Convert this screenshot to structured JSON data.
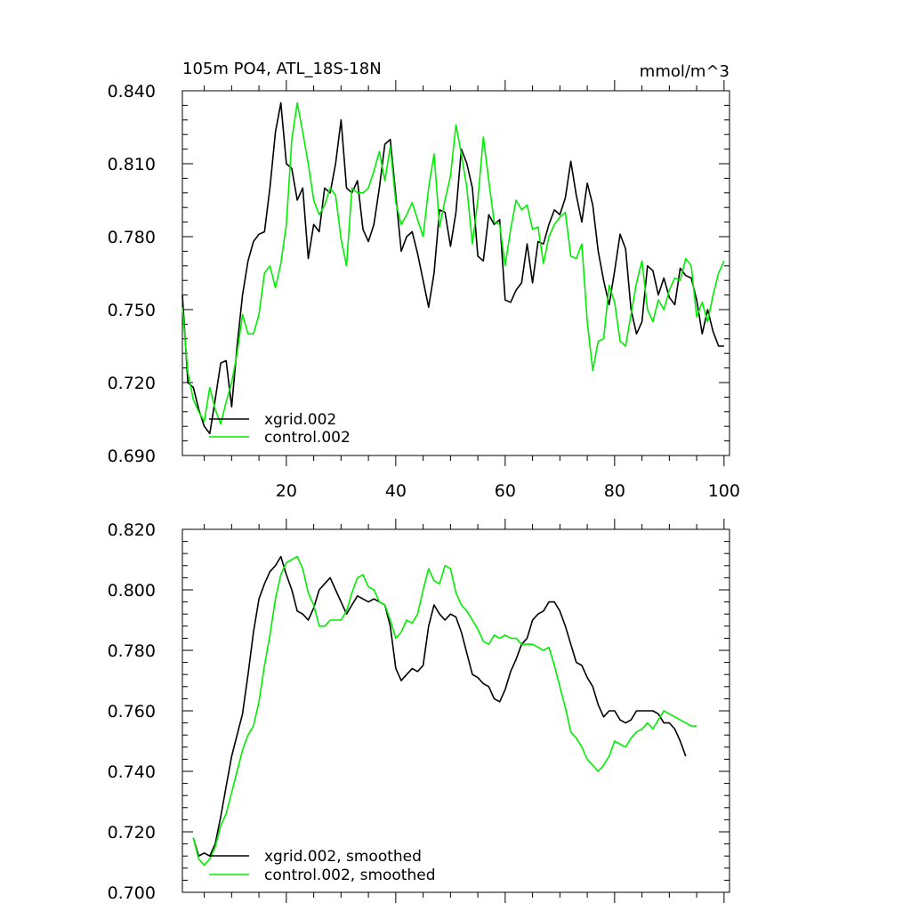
{
  "chart_data": [
    {
      "type": "line",
      "title_left": "105m PO4, ATL_18S-18N",
      "title_right": "mmol/m^3",
      "xlim": [
        1,
        101
      ],
      "ylim": [
        0.69,
        0.84
      ],
      "yticks": [
        0.69,
        0.72,
        0.75,
        0.78,
        0.81,
        0.84
      ],
      "ytick_labels": [
        "0.690",
        "0.720",
        "0.750",
        "0.780",
        "0.810",
        "0.840"
      ],
      "xticks": [
        20,
        40,
        60,
        80,
        100
      ],
      "xtick_labels": [
        "20",
        "40",
        "60",
        "80",
        "100"
      ],
      "show_xtick_labels": true,
      "x_start": 1,
      "series": [
        {
          "name": "xgrid.002",
          "color": "#000000",
          "values": [
            0.756,
            0.72,
            0.718,
            0.709,
            0.702,
            0.699,
            0.713,
            0.728,
            0.729,
            0.71,
            0.735,
            0.756,
            0.77,
            0.778,
            0.781,
            0.782,
            0.8,
            0.823,
            0.835,
            0.81,
            0.808,
            0.795,
            0.8,
            0.771,
            0.785,
            0.782,
            0.8,
            0.798,
            0.81,
            0.828,
            0.8,
            0.798,
            0.803,
            0.783,
            0.778,
            0.785,
            0.8,
            0.818,
            0.82,
            0.797,
            0.774,
            0.78,
            0.782,
            0.773,
            0.762,
            0.751,
            0.765,
            0.791,
            0.79,
            0.776,
            0.79,
            0.816,
            0.81,
            0.8,
            0.772,
            0.77,
            0.789,
            0.785,
            0.787,
            0.754,
            0.753,
            0.758,
            0.761,
            0.777,
            0.761,
            0.778,
            0.777,
            0.785,
            0.791,
            0.789,
            0.796,
            0.811,
            0.797,
            0.786,
            0.802,
            0.793,
            0.774,
            0.762,
            0.752,
            0.766,
            0.781,
            0.775,
            0.75,
            0.74,
            0.745,
            0.768,
            0.766,
            0.756,
            0.763,
            0.755,
            0.752,
            0.767,
            0.764,
            0.763,
            0.754,
            0.74,
            0.75,
            0.741,
            0.735,
            0.735
          ]
        },
        {
          "name": "control.002",
          "color": "#00ee00",
          "values": [
            0.751,
            0.724,
            0.713,
            0.708,
            0.704,
            0.718,
            0.709,
            0.703,
            0.712,
            0.72,
            0.732,
            0.748,
            0.74,
            0.74,
            0.748,
            0.765,
            0.768,
            0.759,
            0.769,
            0.785,
            0.82,
            0.835,
            0.823,
            0.81,
            0.795,
            0.789,
            0.793,
            0.8,
            0.797,
            0.779,
            0.768,
            0.8,
            0.798,
            0.798,
            0.8,
            0.807,
            0.815,
            0.803,
            0.817,
            0.794,
            0.785,
            0.789,
            0.794,
            0.787,
            0.78,
            0.8,
            0.814,
            0.784,
            0.795,
            0.805,
            0.826,
            0.814,
            0.8,
            0.777,
            0.795,
            0.821,
            0.803,
            0.786,
            0.785,
            0.768,
            0.783,
            0.795,
            0.791,
            0.793,
            0.783,
            0.784,
            0.769,
            0.78,
            0.785,
            0.788,
            0.79,
            0.772,
            0.771,
            0.777,
            0.745,
            0.725,
            0.737,
            0.738,
            0.76,
            0.753,
            0.737,
            0.735,
            0.748,
            0.761,
            0.77,
            0.75,
            0.745,
            0.754,
            0.75,
            0.758,
            0.763,
            0.762,
            0.771,
            0.768,
            0.747,
            0.753,
            0.745,
            0.756,
            0.765,
            0.77
          ]
        }
      ],
      "legend": {
        "position": "bottom-left",
        "entries": [
          "xgrid.002",
          "control.002"
        ]
      }
    },
    {
      "type": "line",
      "xlim": [
        1,
        101
      ],
      "ylim": [
        0.7,
        0.82
      ],
      "yticks": [
        0.7,
        0.72,
        0.74,
        0.76,
        0.78,
        0.8,
        0.82
      ],
      "ytick_labels": [
        "0.700",
        "0.720",
        "0.740",
        "0.760",
        "0.780",
        "0.800",
        "0.820"
      ],
      "xticks": [
        20,
        40,
        60,
        80,
        100
      ],
      "show_xtick_labels": false,
      "x_start": 3,
      "series": [
        {
          "name": "xgrid.002, smoothed",
          "color": "#000000",
          "values": [
            0.718,
            0.712,
            0.713,
            0.712,
            0.716,
            0.725,
            0.735,
            0.745,
            0.752,
            0.759,
            0.772,
            0.786,
            0.797,
            0.802,
            0.806,
            0.808,
            0.811,
            0.805,
            0.8,
            0.793,
            0.792,
            0.79,
            0.794,
            0.8,
            0.802,
            0.804,
            0.8,
            0.796,
            0.792,
            0.795,
            0.798,
            0.797,
            0.796,
            0.797,
            0.796,
            0.795,
            0.788,
            0.774,
            0.77,
            0.772,
            0.774,
            0.773,
            0.775,
            0.788,
            0.795,
            0.792,
            0.79,
            0.792,
            0.791,
            0.786,
            0.779,
            0.772,
            0.771,
            0.769,
            0.768,
            0.764,
            0.763,
            0.767,
            0.773,
            0.777,
            0.782,
            0.784,
            0.79,
            0.792,
            0.793,
            0.796,
            0.796,
            0.793,
            0.788,
            0.782,
            0.776,
            0.775,
            0.771,
            0.768,
            0.762,
            0.758,
            0.76,
            0.76,
            0.757,
            0.756,
            0.757,
            0.76,
            0.76,
            0.76,
            0.76,
            0.759,
            0.756,
            0.756,
            0.754,
            0.75,
            0.745
          ]
        },
        {
          "name": "control.002, smoothed",
          "color": "#00ee00",
          "values": [
            0.718,
            0.711,
            0.709,
            0.711,
            0.715,
            0.722,
            0.726,
            0.733,
            0.74,
            0.747,
            0.752,
            0.755,
            0.763,
            0.775,
            0.785,
            0.797,
            0.805,
            0.809,
            0.81,
            0.811,
            0.807,
            0.799,
            0.795,
            0.788,
            0.788,
            0.79,
            0.79,
            0.79,
            0.793,
            0.799,
            0.804,
            0.805,
            0.801,
            0.8,
            0.796,
            0.795,
            0.79,
            0.784,
            0.786,
            0.79,
            0.789,
            0.792,
            0.8,
            0.807,
            0.803,
            0.802,
            0.808,
            0.807,
            0.799,
            0.795,
            0.793,
            0.79,
            0.787,
            0.783,
            0.782,
            0.785,
            0.784,
            0.785,
            0.784,
            0.784,
            0.782,
            0.782,
            0.782,
            0.781,
            0.78,
            0.781,
            0.775,
            0.768,
            0.761,
            0.753,
            0.751,
            0.748,
            0.744,
            0.742,
            0.74,
            0.742,
            0.745,
            0.75,
            0.749,
            0.748,
            0.751,
            0.753,
            0.754,
            0.756,
            0.754,
            0.757,
            0.76,
            0.759,
            0.758,
            0.757,
            0.756,
            0.755,
            0.755
          ]
        }
      ],
      "legend": {
        "position": "bottom-left",
        "entries": [
          "xgrid.002, smoothed",
          "control.002, smoothed"
        ]
      }
    }
  ]
}
